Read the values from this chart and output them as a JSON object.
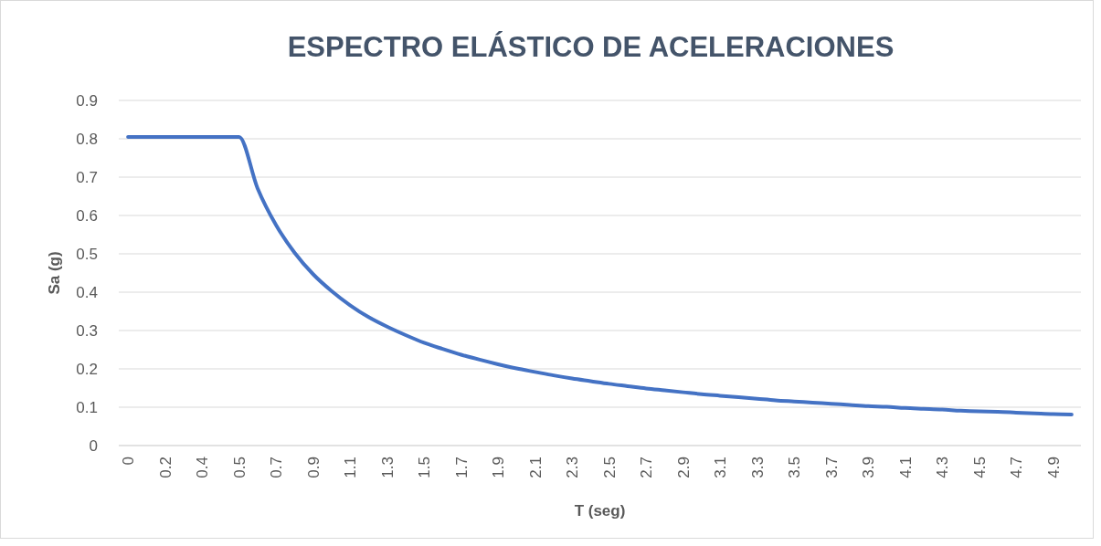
{
  "chart_data": {
    "type": "line",
    "title": "ESPECTRO ELÁSTICO DE ACELERACIONES",
    "xlabel": "T (seg)",
    "ylabel": "Sa (g)",
    "categories": [
      "0",
      null,
      "0.2",
      null,
      "0.4",
      null,
      "0.5",
      null,
      "0.7",
      null,
      "0.9",
      null,
      "1.1",
      null,
      "1.3",
      null,
      "1.5",
      null,
      "1.7",
      null,
      "1.9",
      null,
      "2.1",
      null,
      "2.3",
      null,
      "2.5",
      null,
      "2.7",
      null,
      "2.9",
      null,
      "3.1",
      null,
      "3.3",
      null,
      "3.5",
      null,
      "3.7",
      null,
      "3.9",
      null,
      "4.1",
      null,
      "4.3",
      null,
      "4.5",
      null,
      "4.7",
      null,
      "4.9",
      null
    ],
    "series": [
      {
        "color": "#4472c4",
        "values": [
          0.805,
          0.805,
          0.805,
          0.805,
          0.805,
          0.805,
          0.805,
          0.671,
          0.575,
          0.503,
          0.447,
          0.403,
          0.366,
          0.335,
          0.31,
          0.288,
          0.268,
          0.252,
          0.237,
          0.224,
          0.212,
          0.201,
          0.192,
          0.183,
          0.175,
          0.168,
          0.161,
          0.155,
          0.149,
          0.144,
          0.139,
          0.134,
          0.13,
          0.126,
          0.122,
          0.118,
          0.115,
          0.112,
          0.109,
          0.106,
          0.103,
          0.101,
          0.098,
          0.096,
          0.094,
          0.091,
          0.089,
          0.088,
          0.086,
          0.084,
          0.082,
          0.081
        ]
      }
    ],
    "ylim": [
      0,
      0.9
    ],
    "yticks": [
      0,
      0.1,
      0.2,
      0.3,
      0.4,
      0.5,
      0.6,
      0.7,
      0.8,
      0.9
    ],
    "grid": "y",
    "marker": "none",
    "line_style": "solid"
  }
}
